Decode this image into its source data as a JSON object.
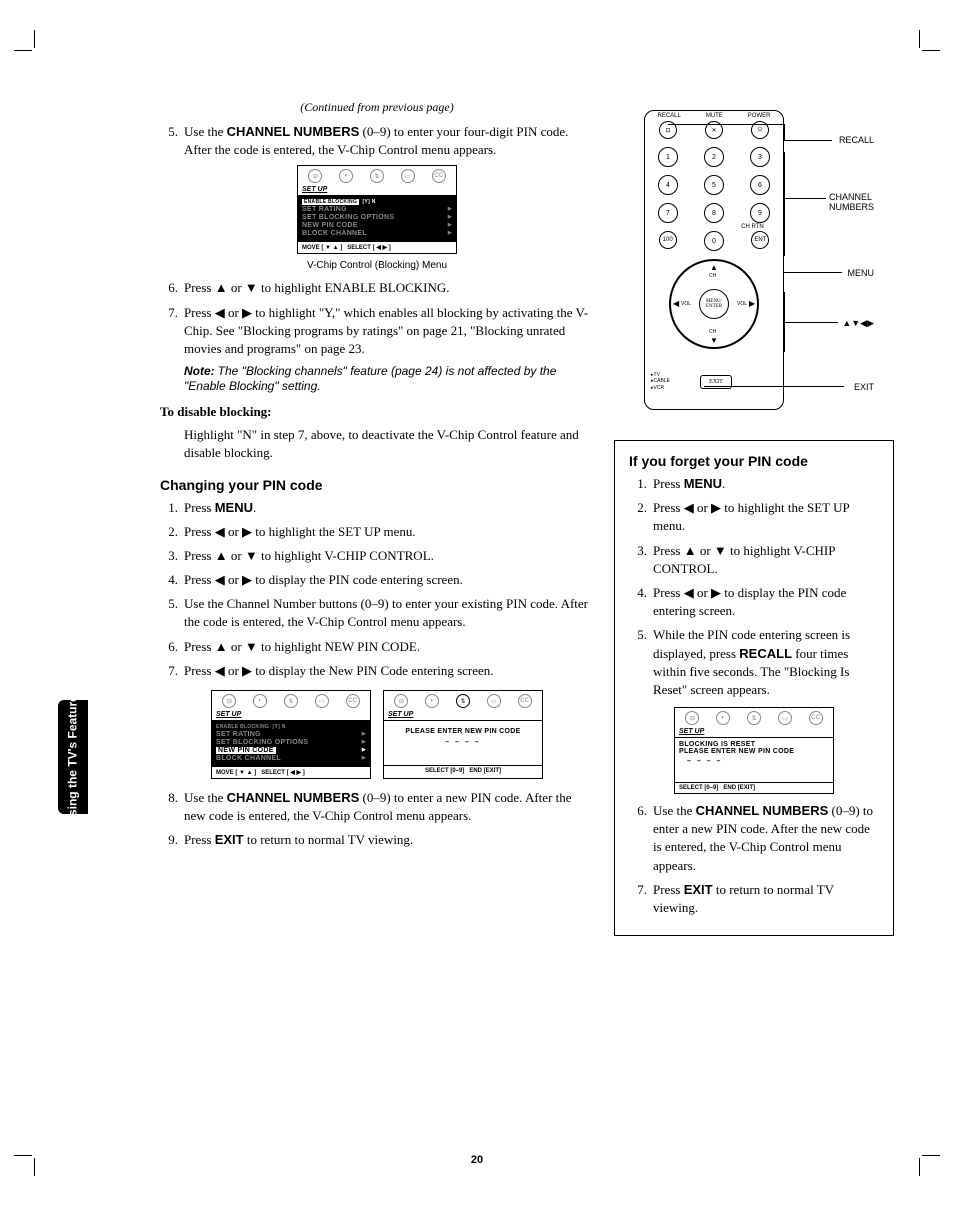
{
  "continued": "(Continued from previous page)",
  "main": {
    "step5": "Use the <b>CHANNEL NUMBERS</b> (0–9) to enter your four-digit PIN code. After the code is entered, the V-Chip Control menu appears.",
    "menu1_caption": "V-Chip Control (Blocking) Menu",
    "step6": "Press ▲ or ▼ to highlight ENABLE BLOCKING.",
    "step7": "Press ◀ or ▶ to highlight \"Y,\" which enables all blocking by activating the V-Chip. See \"Blocking programs by ratings\" on page 21, \"Blocking unrated movies and programs\" on page 23.",
    "note": "The \"Blocking channels\" feature (page 24) is not affected by the \"Enable Blocking\" setting.",
    "note_label": "Note:",
    "disable_heading": "To disable blocking:",
    "disable_text": "Highlight \"N\" in step 7, above, to deactivate the V-Chip Control feature and disable blocking.",
    "changing_heading": "Changing your PIN code",
    "c1": "Press <b>MENU</b>.",
    "c2": "Press ◀ or ▶ to highlight the SET UP menu.",
    "c3": "Press ▲ or ▼ to highlight V-CHIP CONTROL.",
    "c4": "Press ◀ or ▶ to display the PIN code entering screen.",
    "c5": "Use the Channel Number buttons (0–9) to enter your existing PIN code. After the code is entered, the V-Chip Control menu appears.",
    "c6": "Press ▲ or ▼ to highlight NEW PIN CODE.",
    "c7": "Press ◀ or ▶ to display the New PIN Code entering screen.",
    "c8": "Use the <b>CHANNEL NUMBERS</b> (0–9) to enter a new PIN code. After the new code is entered, the V-Chip Control menu appears.",
    "c9": "Press <b>EXIT</b> to return to normal TV viewing."
  },
  "menu": {
    "setup": "SET UP",
    "enable_blocking": "ENABLE BLOCKING",
    "yn": "[Y] N",
    "set_rating": "SET RATING",
    "set_blocking_options": "SET BLOCKING OPTIONS",
    "new_pin": "NEW PIN CODE",
    "block_channel": "BLOCK CHANNEL",
    "move": "MOVE [ ▼ ▲ ]",
    "select": "SELECT [ ◀  ▶ ]",
    "please_enter": "PLEASE ENTER NEW PIN CODE",
    "dashes": "– – – –",
    "select09": "SELECT [0–9]",
    "end_exit": "END [EXIT]",
    "blocking_reset": "BLOCKING IS RESET"
  },
  "remote": {
    "recall_lbl": "RECALL",
    "mute_lbl": "MUTE",
    "power_lbl": "POWER",
    "chrtn": "CH RTN",
    "ent": "ENT",
    "menu_enter": "MENU/\nENTER",
    "vol": "VOL",
    "ch": "CH",
    "tv": "TV",
    "cable": "CABLE",
    "vcr": "VCR",
    "exit": "EXIT",
    "callouts": {
      "recall": "RECALL",
      "channel": "CHANNEL\nNUMBERS",
      "menu": "MENU",
      "arrows": "▲▼◀▶",
      "exit": "EXIT"
    }
  },
  "sidebox": {
    "heading": "If you forget your PIN code",
    "s1": "Press <b>MENU</b>.",
    "s2": "Press ◀ or ▶ to highlight the SET UP menu.",
    "s3": "Press ▲ or ▼ to highlight V-CHIP CONTROL.",
    "s4": "Press ◀ or ▶ to display the PIN code entering screen.",
    "s5": "While the PIN code entering screen is displayed, press <b>RECALL</b> four times within five seconds. The \"Blocking Is Reset\" screen appears.",
    "s6": "Use the <b>CHANNEL NUMBERS</b> (0–9) to enter a new PIN code. After the new code is entered, the V-Chip Control menu appears.",
    "s7": "Press <b>EXIT</b> to return to normal TV viewing."
  },
  "tab": "Using the TV's\nFeatures",
  "page_num": "20"
}
